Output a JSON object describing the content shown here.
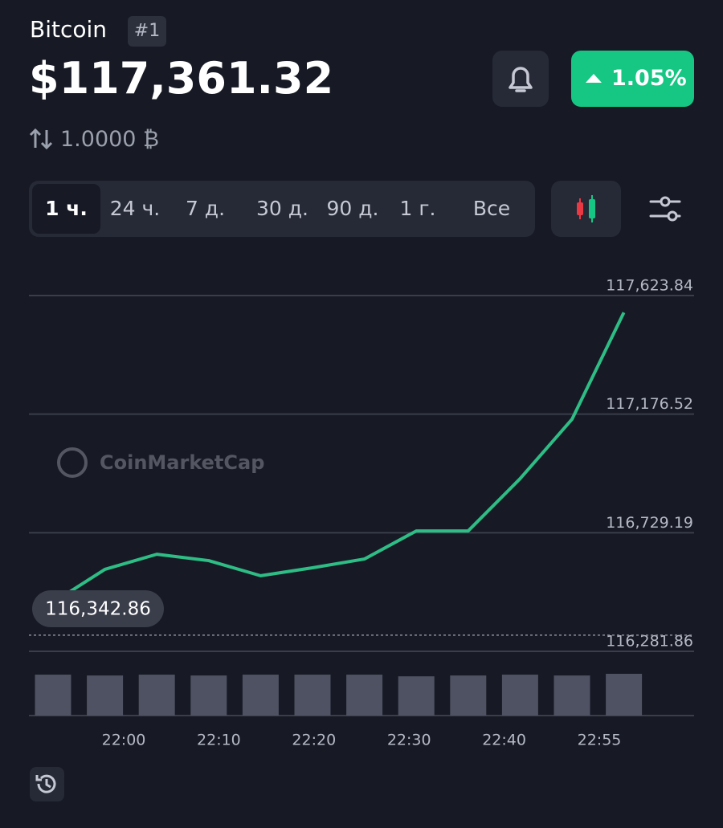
{
  "header": {
    "name": "Bitcoin",
    "rank": "#1",
    "price": "$117,361.32",
    "change": "1.05%",
    "conversion": "1.0000 ₿"
  },
  "tabs": [
    "1 ч.",
    "24 ч.",
    "7 д.",
    "30 д.",
    "90 д.",
    "1 г.",
    "Все"
  ],
  "chart_data": {
    "type": "line",
    "watermark": "CoinMarketCap",
    "series": [
      {
        "name": "Bitcoin",
        "color": "#2ebd85",
        "values": [
          116466,
          116591,
          116648,
          116624,
          116567,
          116597,
          116630,
          116736,
          116736,
          116933,
          117157,
          117560
        ]
      }
    ],
    "volume": {
      "color": "#4e5262",
      "values": [
        49,
        48,
        49,
        48,
        49,
        49,
        49,
        47,
        48,
        49,
        48,
        50
      ]
    },
    "ylim": [
      116281.86,
      117623.84
    ],
    "yticks": [
      {
        "value": 117623.84,
        "label": "117,623.84"
      },
      {
        "value": 117176.52,
        "label": "117,176.52"
      },
      {
        "value": 116729.19,
        "label": "116,729.19"
      },
      {
        "value": 116281.86,
        "label": "116,281.86"
      }
    ],
    "open_price": {
      "value": 116342.86,
      "label": "116,342.86"
    },
    "x_labels": [
      "22:00",
      "22:10",
      "22:20",
      "22:30",
      "22:40",
      "22:55"
    ],
    "grid": true
  }
}
